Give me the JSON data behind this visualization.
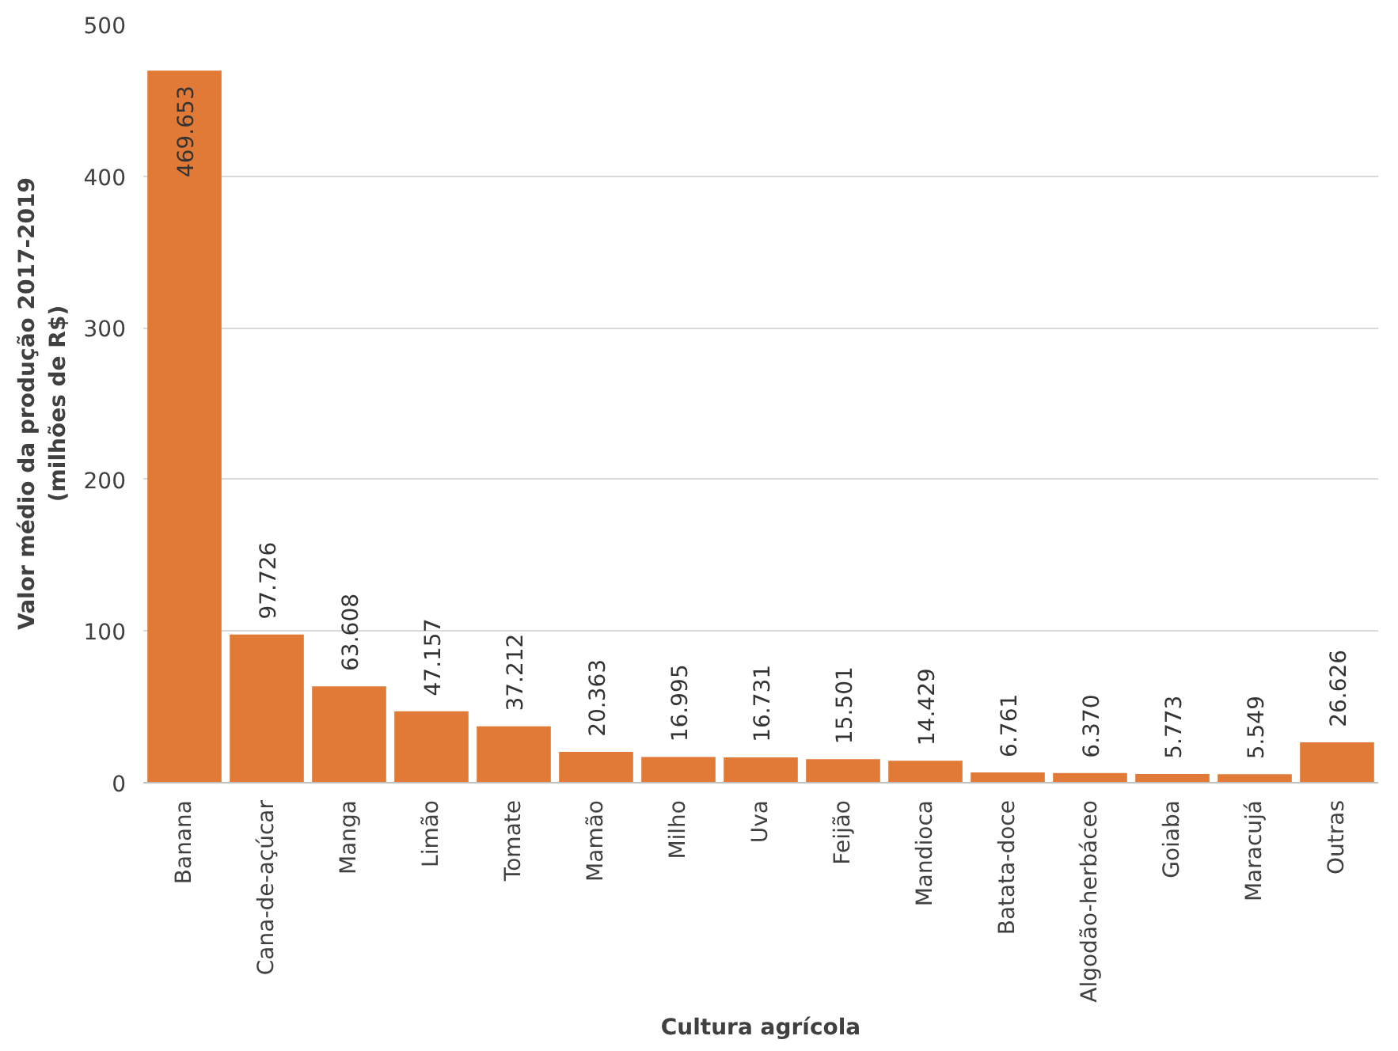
{
  "chart_data": {
    "type": "bar",
    "xlabel": "Cultura agrícola",
    "ylabel": "Valor médio da produção 2017-2019\n(milhões de R$)",
    "categories": [
      "Banana",
      "Cana-de-açúcar",
      "Manga",
      "Limão",
      "Tomate",
      "Mamão",
      "Milho",
      "Uva",
      "Feijão",
      "Mandioca",
      "Batata-doce",
      "Algodão-herbáceo",
      "Goiaba",
      "Maracujá",
      "Outras"
    ],
    "values": [
      469.653,
      97.726,
      63.608,
      47.157,
      37.212,
      20.363,
      16.995,
      16.731,
      15.501,
      14.429,
      6.761,
      6.37,
      5.773,
      5.549,
      26.626
    ],
    "value_labels": [
      "469.653",
      "97.726",
      "63.608",
      "47.157",
      "37.212",
      "20.363",
      "16.995",
      "16.731",
      "15.501",
      "14.429",
      "6.761",
      "6.370",
      "5.773",
      "5.549",
      "26.626"
    ],
    "color": "#e07a36",
    "ylim": [
      0,
      500
    ],
    "yticks": [
      0,
      100,
      200,
      300,
      400,
      500
    ],
    "grid": "y"
  }
}
